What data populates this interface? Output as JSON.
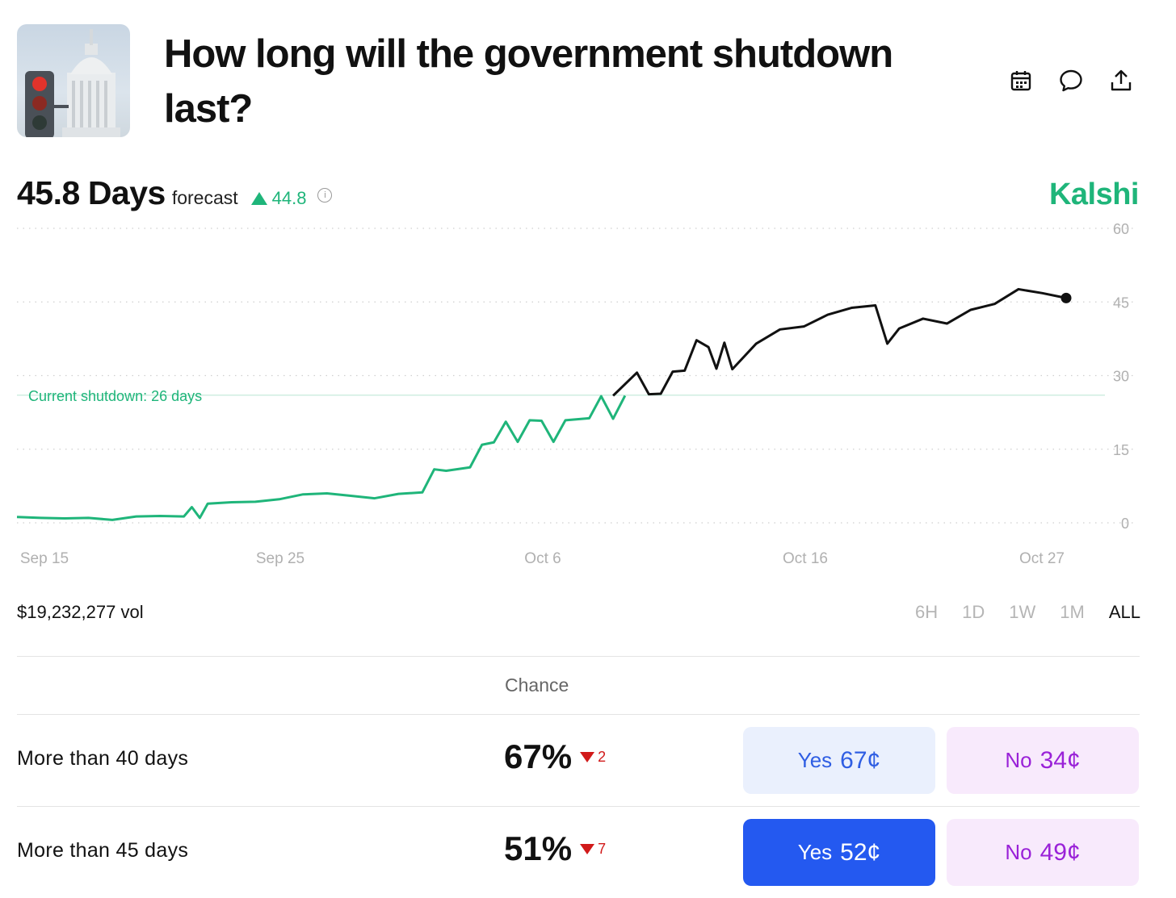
{
  "market": {
    "title": "How long will the government shutdown last?",
    "forecast_value": "45.8",
    "forecast_unit": "Days",
    "forecast_label": "forecast",
    "change": "44.8",
    "brand": "Kalshi",
    "volume": "$19,232,277 vol"
  },
  "actions": [
    {
      "icon": "calendar-icon"
    },
    {
      "icon": "comment-icon"
    },
    {
      "icon": "share-icon"
    }
  ],
  "ranges": [
    {
      "label": "6H",
      "active": false
    },
    {
      "label": "1D",
      "active": false
    },
    {
      "label": "1W",
      "active": false
    },
    {
      "label": "1M",
      "active": false
    },
    {
      "label": "ALL",
      "active": true
    }
  ],
  "colors": {
    "accent_green": "#1fb57a",
    "line_black": "#111111",
    "yes_blue": "#2459f0",
    "no_purple": "#9a22d8",
    "down_red": "#d11a1a"
  },
  "chart_data": {
    "type": "line",
    "ylim": [
      0,
      60
    ],
    "yticks": [
      "60",
      "45",
      "30",
      "15",
      "0"
    ],
    "xticks": [
      "Sep 15",
      "Sep 25",
      "Oct 6",
      "Oct 16",
      "Oct 27"
    ],
    "reference_line": {
      "label": "Current shutdown: 26 days",
      "value": 26
    },
    "series": [
      {
        "points": [
          [
            "Sep 14",
            1.2
          ],
          [
            "Sep 15",
            1.0
          ],
          [
            "Sep 16",
            0.9
          ],
          [
            "Sep 17",
            1.0
          ],
          [
            "Sep 18",
            0.6
          ],
          [
            "Sep 19",
            1.3
          ],
          [
            "Sep 20",
            1.4
          ],
          [
            "Sep 21",
            1.3
          ],
          [
            "Sep 21",
            3.2
          ],
          [
            "Sep 21",
            1.0
          ],
          [
            "Sep 22",
            3.9
          ],
          [
            "Sep 23",
            4.2
          ],
          [
            "Sep 24",
            4.3
          ],
          [
            "Sep 25",
            4.8
          ],
          [
            "Sep 26",
            5.8
          ],
          [
            "Sep 27",
            6.0
          ],
          [
            "Sep 28",
            5.5
          ],
          [
            "Sep 29",
            5.0
          ],
          [
            "Sep 30",
            5.9
          ],
          [
            "Oct 1",
            6.2
          ],
          [
            "Oct 1",
            10.9
          ],
          [
            "Oct 2",
            10.6
          ],
          [
            "Oct 3",
            11.3
          ],
          [
            "Oct 3",
            15.9
          ],
          [
            "Oct 4",
            16.4
          ],
          [
            "Oct 4",
            20.6
          ],
          [
            "Oct 5",
            16.5
          ],
          [
            "Oct 5",
            20.9
          ],
          [
            "Oct 6",
            20.8
          ],
          [
            "Oct 6",
            16.5
          ],
          [
            "Oct 7",
            20.9
          ],
          [
            "Oct 8",
            21.3
          ],
          [
            "Oct 8",
            25.8
          ],
          [
            "Oct 9",
            21.2
          ],
          [
            "Oct 9",
            25.9
          ]
        ]
      },
      {
        "points": [
          [
            "Oct 9",
            25.9
          ],
          [
            "Oct 10",
            30.6
          ],
          [
            "Oct 10",
            26.2
          ],
          [
            "Oct 11",
            26.3
          ],
          [
            "Oct 11",
            30.8
          ],
          [
            "Oct 12",
            31.0
          ],
          [
            "Oct 12",
            37.2
          ],
          [
            "Oct 13",
            35.8
          ],
          [
            "Oct 13",
            31.4
          ],
          [
            "Oct 13",
            36.7
          ],
          [
            "Oct 14",
            31.3
          ],
          [
            "Oct 15",
            36.5
          ],
          [
            "Oct 16",
            39.4
          ],
          [
            "Oct 17",
            40.0
          ],
          [
            "Oct 18",
            42.4
          ],
          [
            "Oct 19",
            43.8
          ],
          [
            "Oct 20",
            44.3
          ],
          [
            "Oct 20",
            36.5
          ],
          [
            "Oct 21",
            39.6
          ],
          [
            "Oct 22",
            41.6
          ],
          [
            "Oct 23",
            40.6
          ],
          [
            "Oct 24",
            43.4
          ],
          [
            "Oct 25",
            44.6
          ],
          [
            "Oct 26",
            47.6
          ],
          [
            "Oct 27",
            46.8
          ],
          [
            "Oct 28",
            45.8
          ]
        ]
      }
    ]
  },
  "outcomes_header": {
    "chance": "Chance"
  },
  "outcomes": [
    {
      "label": "More than 40 days",
      "chance": "67%",
      "change": "2",
      "yes_label": "Yes",
      "yes_price": "67¢",
      "no_label": "No",
      "no_price": "34¢",
      "yes_active": false
    },
    {
      "label": "More than 45 days",
      "chance": "51%",
      "change": "7",
      "yes_label": "Yes",
      "yes_price": "52¢",
      "no_label": "No",
      "no_price": "49¢",
      "yes_active": true
    }
  ]
}
